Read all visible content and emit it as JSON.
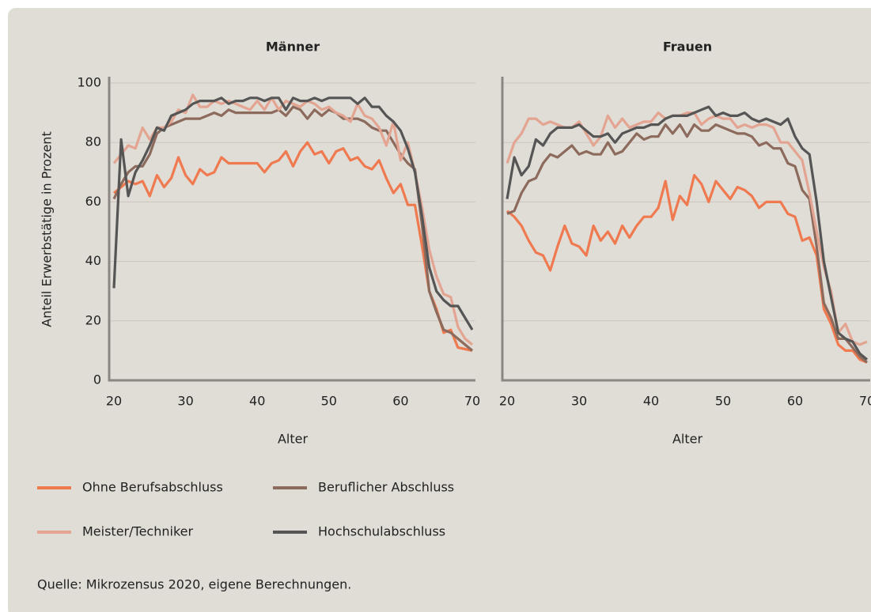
{
  "chart_data": [
    {
      "type": "line",
      "title": "Männer",
      "ylabel": "Anteil Erwerbstätige in Prozent",
      "xlabel": "Alter",
      "x": [
        20,
        21,
        22,
        23,
        24,
        25,
        26,
        27,
        28,
        29,
        30,
        31,
        32,
        33,
        34,
        35,
        36,
        37,
        38,
        39,
        40,
        41,
        42,
        43,
        44,
        45,
        46,
        47,
        48,
        49,
        50,
        51,
        52,
        53,
        54,
        55,
        56,
        57,
        58,
        59,
        60,
        61,
        62,
        63,
        64,
        65,
        66,
        67,
        68,
        69,
        70
      ],
      "xlim": [
        20,
        70
      ],
      "xticks": [
        20,
        30,
        40,
        50,
        60,
        70
      ],
      "ylim": [
        0,
        100
      ],
      "yticks": [
        0,
        20,
        40,
        60,
        80,
        100
      ],
      "grid": true,
      "series": [
        {
          "name": "Ohne Berufsabschluss",
          "color": "#f07a50",
          "values": [
            63,
            65,
            67,
            66,
            67,
            62,
            69,
            65,
            68,
            75,
            69,
            66,
            71,
            69,
            70,
            75,
            73,
            73,
            73,
            73,
            73,
            70,
            73,
            74,
            77,
            72,
            77,
            80,
            76,
            77,
            73,
            77,
            78,
            74,
            75,
            72,
            71,
            74,
            68,
            63,
            66,
            59,
            59,
            45,
            30,
            24,
            16,
            17,
            11,
            10.5,
            10
          ]
        },
        {
          "name": "Beruflicher Abschluss",
          "color": "#8c6b5d",
          "values": [
            61,
            66,
            70,
            72,
            72,
            76,
            83,
            85,
            86,
            87,
            88,
            88,
            88,
            89,
            90,
            89,
            91,
            90,
            90,
            90,
            90,
            90,
            90,
            91,
            89,
            92,
            91,
            88,
            91,
            89,
            91,
            90,
            88,
            88,
            88,
            87,
            85,
            84,
            84,
            80,
            76,
            73,
            71,
            52,
            30,
            23,
            17,
            16,
            14,
            12,
            10
          ]
        },
        {
          "name": "Meister/Techniker",
          "color": "#e3a592",
          "values": [
            73,
            76,
            79,
            78,
            85,
            81,
            85,
            85,
            87,
            91,
            90,
            96,
            92,
            92,
            94,
            93,
            94,
            93,
            92,
            91,
            94,
            91,
            95,
            91,
            94,
            93,
            92,
            94,
            93,
            91,
            92,
            90,
            89,
            87,
            93,
            89,
            88,
            85,
            79,
            87,
            74,
            80,
            70,
            58,
            44,
            35,
            29,
            28,
            18,
            14,
            12
          ]
        },
        {
          "name": "Hochschulabschluss",
          "color": "#555555",
          "values": [
            31,
            81,
            62,
            70,
            74,
            79,
            85,
            84,
            89,
            90,
            91,
            93,
            94,
            94,
            94,
            95,
            93,
            94,
            94,
            95,
            95,
            94,
            95,
            95,
            91,
            95,
            94,
            94,
            95,
            94,
            95,
            95,
            95,
            95,
            93,
            95,
            92,
            92,
            89,
            87,
            84,
            78,
            70,
            55,
            38,
            30,
            27,
            25,
            25,
            21,
            17
          ]
        }
      ]
    },
    {
      "type": "line",
      "title": "Frauen",
      "xlabel": "Alter",
      "x": [
        20,
        21,
        22,
        23,
        24,
        25,
        26,
        27,
        28,
        29,
        30,
        31,
        32,
        33,
        34,
        35,
        36,
        37,
        38,
        39,
        40,
        41,
        42,
        43,
        44,
        45,
        46,
        47,
        48,
        49,
        50,
        51,
        52,
        53,
        54,
        55,
        56,
        57,
        58,
        59,
        60,
        61,
        62,
        63,
        64,
        65,
        66,
        67,
        68,
        69,
        70
      ],
      "xlim": [
        20,
        70
      ],
      "xticks": [
        20,
        30,
        40,
        50,
        60,
        70
      ],
      "ylim": [
        0,
        100
      ],
      "yticks": [
        0,
        20,
        40,
        60,
        80,
        100
      ],
      "grid": true,
      "series": [
        {
          "name": "Ohne Berufsabschluss",
          "color": "#f07a50",
          "values": [
            57,
            55,
            52,
            47,
            43,
            42,
            37,
            45,
            52,
            46,
            45,
            42,
            52,
            47,
            50,
            46,
            52,
            48,
            52,
            55,
            55,
            58,
            67,
            54,
            62,
            59,
            69,
            66,
            60,
            67,
            64,
            61,
            65,
            64,
            62,
            58,
            60,
            60,
            60,
            56,
            55,
            47,
            48,
            42,
            24,
            19,
            12,
            10,
            10,
            7,
            6
          ]
        },
        {
          "name": "Beruflicher Abschluss",
          "color": "#8c6b5d",
          "values": [
            56,
            57,
            63,
            67,
            68,
            73,
            76,
            75,
            77,
            79,
            76,
            77,
            76,
            76,
            80,
            76,
            77,
            80,
            83,
            81,
            82,
            82,
            86,
            83,
            86,
            82,
            86,
            84,
            84,
            86,
            85,
            84,
            83,
            83,
            82,
            79,
            80,
            78,
            78,
            73,
            72,
            64,
            61,
            45,
            26,
            21,
            14,
            14,
            11,
            8,
            6
          ]
        },
        {
          "name": "Meister/Techniker",
          "color": "#e3a592",
          "values": [
            73,
            80,
            83,
            88,
            88,
            86,
            87,
            86,
            85,
            85,
            87,
            83,
            79,
            82,
            89,
            85,
            88,
            85,
            86,
            87,
            87,
            90,
            88,
            89,
            89,
            90,
            90,
            86,
            88,
            89,
            88,
            88,
            85,
            86,
            85,
            86,
            86,
            85,
            80,
            80,
            77,
            74,
            63,
            50,
            38,
            30,
            16,
            19,
            13,
            12,
            13
          ]
        },
        {
          "name": "Hochschulabschluss",
          "color": "#555555",
          "values": [
            61,
            75,
            69,
            72,
            81,
            79,
            83,
            85,
            85,
            85,
            86,
            84,
            82,
            82,
            83,
            80,
            83,
            84,
            85,
            85,
            86,
            86,
            88,
            89,
            89,
            89,
            90,
            91,
            92,
            89,
            90,
            89,
            89,
            90,
            88,
            87,
            88,
            87,
            86,
            88,
            82,
            78,
            76,
            60,
            40,
            28,
            16,
            14,
            13,
            9,
            7
          ]
        }
      ]
    }
  ],
  "source": "Quelle: Mikrozensus 2020, eigene Berechnungen."
}
